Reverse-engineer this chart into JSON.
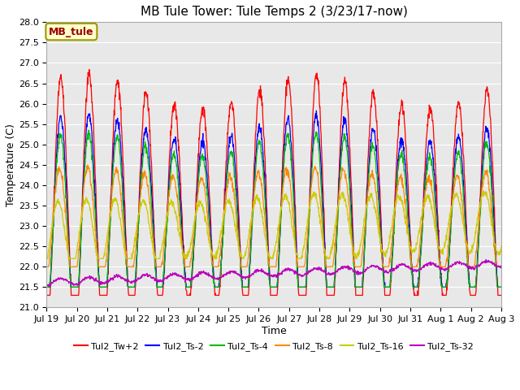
{
  "title": "MB Tule Tower: Tule Temps 2 (3/23/17-now)",
  "xlabel": "Time",
  "ylabel": "Temperature (C)",
  "ylim": [
    21.0,
    28.0
  ],
  "yticks": [
    21.0,
    21.5,
    22.0,
    22.5,
    23.0,
    23.5,
    24.0,
    24.5,
    25.0,
    25.5,
    26.0,
    26.5,
    27.0,
    27.5,
    28.0
  ],
  "xtick_labels": [
    "Jul 19",
    "Jul 20",
    "Jul 21",
    "Jul 22",
    "Jul 23",
    "Jul 24",
    "Jul 25",
    "Jul 26",
    "Jul 27",
    "Jul 28",
    "Jul 29",
    "Jul 30",
    "Jul 31",
    "Aug 1",
    "Aug 2",
    "Aug 3"
  ],
  "legend_box_label": "MB_tule",
  "legend_box_color": "#ffffcc",
  "legend_box_edgecolor": "#999900",
  "legend_box_text_color": "#990000",
  "lines": [
    {
      "label": "Tul2_Tw+2",
      "color": "#ff0000"
    },
    {
      "label": "Tul2_Ts-2",
      "color": "#0000ff"
    },
    {
      "label": "Tul2_Ts-4",
      "color": "#00bb00"
    },
    {
      "label": "Tul2_Ts-8",
      "color": "#ff8800"
    },
    {
      "label": "Tul2_Ts-16",
      "color": "#cccc00"
    },
    {
      "label": "Tul2_Ts-32",
      "color": "#bb00bb"
    }
  ],
  "fig_bg_color": "#ffffff",
  "plot_bg_color": "#e8e8e8",
  "grid_color": "#ffffff",
  "title_fontsize": 11,
  "axis_label_fontsize": 9,
  "tick_fontsize": 8,
  "legend_fontsize": 8,
  "n_days": 16,
  "pts_per_day": 96
}
